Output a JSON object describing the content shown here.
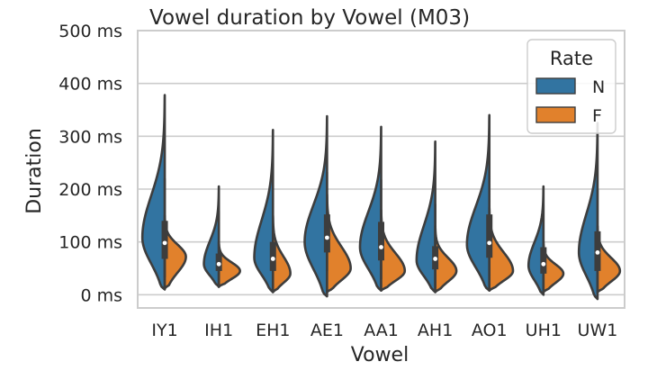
{
  "chart_data": {
    "type": "violin",
    "title": "Vowel duration by Vowel (M03)",
    "xlabel": "Vowel",
    "ylabel": "Duration",
    "ylim": [
      -25,
      500
    ],
    "yticks": [
      0,
      100,
      200,
      300,
      400,
      500
    ],
    "ytick_labels": [
      "0 ms",
      "100 ms",
      "200 ms",
      "300 ms",
      "400 ms",
      "500 ms"
    ],
    "grid": true,
    "legend": {
      "title": "Rate",
      "placement": "top-right",
      "entries": [
        "N",
        "F"
      ]
    },
    "colors": {
      "N": "#3274a1",
      "F": "#e1812c"
    },
    "categories": [
      "IY1",
      "IH1",
      "EH1",
      "AE1",
      "AA1",
      "AH1",
      "AO1",
      "UH1",
      "UW1"
    ],
    "series": [
      {
        "name": "N",
        "violins": [
          {
            "min": 10,
            "max": 378,
            "q1": 68,
            "median": 98,
            "q3": 140,
            "peak": 108,
            "spread": 0.9
          },
          {
            "min": 15,
            "max": 205,
            "q1": 45,
            "median": 58,
            "q3": 78,
            "peak": 58,
            "spread": 0.6
          },
          {
            "min": 5,
            "max": 312,
            "q1": 45,
            "median": 68,
            "q3": 100,
            "peak": 70,
            "spread": 0.75
          },
          {
            "min": -3,
            "max": 338,
            "q1": 80,
            "median": 108,
            "q3": 152,
            "peak": 100,
            "spread": 0.9
          },
          {
            "min": 8,
            "max": 318,
            "q1": 65,
            "median": 90,
            "q3": 138,
            "peak": 90,
            "spread": 0.85
          },
          {
            "min": 5,
            "max": 290,
            "q1": 48,
            "median": 68,
            "q3": 92,
            "peak": 65,
            "spread": 0.75
          },
          {
            "min": 8,
            "max": 340,
            "q1": 70,
            "median": 98,
            "q3": 152,
            "peak": 95,
            "spread": 0.9
          },
          {
            "min": 0,
            "max": 205,
            "q1": 40,
            "median": 58,
            "q3": 90,
            "peak": 55,
            "spread": 0.6
          },
          {
            "min": -8,
            "max": 325,
            "q1": 45,
            "median": 80,
            "q3": 120,
            "peak": 80,
            "spread": 0.75
          }
        ]
      },
      {
        "name": "F",
        "violins": [
          {
            "min": 12,
            "max": 150,
            "peak": 72,
            "spread": 0.85
          },
          {
            "min": 15,
            "max": 100,
            "peak": 45,
            "spread": 0.85
          },
          {
            "min": 5,
            "max": 150,
            "peak": 40,
            "spread": 0.7
          },
          {
            "min": 5,
            "max": 190,
            "peak": 50,
            "spread": 0.95
          },
          {
            "min": 8,
            "max": 160,
            "peak": 45,
            "spread": 0.95
          },
          {
            "min": 5,
            "max": 130,
            "peak": 45,
            "spread": 0.85
          },
          {
            "min": 8,
            "max": 165,
            "peak": 45,
            "spread": 0.95
          },
          {
            "min": 5,
            "max": 100,
            "peak": 40,
            "spread": 0.8
          },
          {
            "min": 5,
            "max": 130,
            "peak": 45,
            "spread": 0.9
          }
        ]
      }
    ]
  }
}
